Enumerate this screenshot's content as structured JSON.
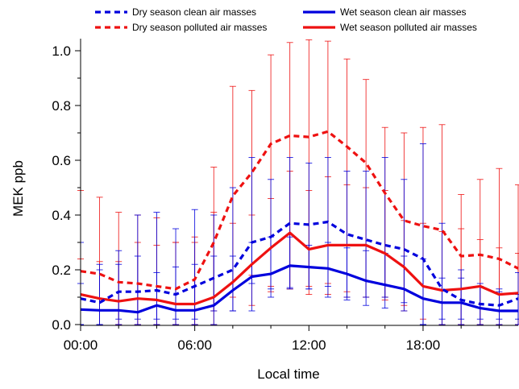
{
  "chart_data": {
    "type": "line",
    "xlabel": "Local time",
    "ylabel": "MEK ppb",
    "xlim": [
      0,
      23
    ],
    "ylim": [
      0,
      1.05
    ],
    "grid": false,
    "legend_position": "top",
    "x_ticks": [
      {
        "value": 0,
        "label": "00:00"
      },
      {
        "value": 6,
        "label": "06:00"
      },
      {
        "value": 12,
        "label": "12:00"
      },
      {
        "value": 18,
        "label": "18:00"
      }
    ],
    "y_ticks": [
      {
        "value": 0.0,
        "label": "0.0"
      },
      {
        "value": 0.2,
        "label": "0.2"
      },
      {
        "value": 0.4,
        "label": "0.4"
      },
      {
        "value": 0.6,
        "label": "0.6"
      },
      {
        "value": 0.8,
        "label": "0.8"
      },
      {
        "value": 1.0,
        "label": "1.0"
      }
    ],
    "x": [
      0,
      1,
      2,
      3,
      4,
      5,
      6,
      7,
      8,
      9,
      10,
      11,
      12,
      13,
      14,
      15,
      16,
      17,
      18,
      19,
      20,
      21,
      22,
      23
    ],
    "series": [
      {
        "name": "Dry season clean air masses",
        "color": "#0000dd",
        "dash": true,
        "values": [
          0.095,
          0.08,
          0.12,
          0.12,
          0.125,
          0.11,
          0.14,
          0.17,
          0.2,
          0.3,
          0.32,
          0.37,
          0.365,
          0.375,
          0.33,
          0.31,
          0.29,
          0.275,
          0.24,
          0.13,
          0.09,
          0.075,
          0.07,
          0.095
        ],
        "err_low": [
          0.0,
          0.0,
          0.02,
          0.02,
          0.02,
          0.02,
          0.02,
          0.05,
          0.05,
          0.15,
          0.1,
          0.13,
          0.13,
          0.14,
          0.1,
          0.1,
          0.1,
          0.08,
          0.0,
          0.02,
          0.02,
          0.02,
          0.02,
          0.02
        ],
        "err_high": [
          0.3,
          0.22,
          0.27,
          0.4,
          0.41,
          0.35,
          0.42,
          0.4,
          0.5,
          0.61,
          0.53,
          0.61,
          0.59,
          0.61,
          0.56,
          0.56,
          0.61,
          0.53,
          0.66,
          0.37,
          0.2,
          0.15,
          0.12,
          0.19
        ]
      },
      {
        "name": "Dry season polluted air masses",
        "color": "#ee1111",
        "dash": true,
        "values": [
          0.195,
          0.185,
          0.155,
          0.15,
          0.14,
          0.13,
          0.165,
          0.3,
          0.47,
          0.555,
          0.66,
          0.69,
          0.685,
          0.705,
          0.65,
          0.59,
          0.48,
          0.38,
          0.36,
          0.345,
          0.25,
          0.255,
          0.24,
          0.205
        ],
        "err_low": [
          0.0,
          0.0,
          0.0,
          0.0,
          0.0,
          0.0,
          0.0,
          0.05,
          0.1,
          0.18,
          0.14,
          0.13,
          0.14,
          0.15,
          0.12,
          0.1,
          0.1,
          0.05,
          0.0,
          0.0,
          0.0,
          0.0,
          0.0,
          0.0
        ],
        "err_high": [
          0.49,
          0.465,
          0.41,
          0.4,
          0.39,
          0.3,
          0.32,
          0.575,
          0.87,
          0.855,
          0.985,
          1.03,
          1.04,
          1.035,
          0.97,
          0.895,
          0.72,
          0.7,
          0.72,
          0.73,
          0.475,
          0.53,
          0.57,
          0.51
        ]
      },
      {
        "name": "Wet season clean air masses",
        "color": "#0000dd",
        "dash": false,
        "values": [
          0.055,
          0.052,
          0.052,
          0.045,
          0.07,
          0.052,
          0.052,
          0.07,
          0.125,
          0.175,
          0.185,
          0.215,
          0.21,
          0.205,
          0.185,
          0.16,
          0.145,
          0.13,
          0.095,
          0.08,
          0.08,
          0.06,
          0.05,
          0.05
        ],
        "err_low": [
          0.0,
          0.0,
          0.0,
          0.0,
          0.0,
          0.0,
          0.0,
          0.0,
          0.05,
          0.05,
          0.13,
          0.135,
          0.13,
          0.1,
          0.09,
          0.07,
          0.06,
          0.05,
          0.0,
          0.0,
          0.0,
          0.0,
          0.0,
          0.0
        ],
        "err_high": [
          0.15,
          0.2,
          0.22,
          0.25,
          0.19,
          0.21,
          0.22,
          0.25,
          0.25,
          0.3,
          0.32,
          0.32,
          0.29,
          0.3,
          0.28,
          0.27,
          0.26,
          0.25,
          0.24,
          0.17,
          0.17,
          0.14,
          0.13,
          0.11
        ]
      },
      {
        "name": "Wet season polluted air masses",
        "color": "#ee1111",
        "dash": false,
        "values": [
          0.11,
          0.095,
          0.085,
          0.095,
          0.09,
          0.075,
          0.075,
          0.1,
          0.155,
          0.22,
          0.28,
          0.335,
          0.275,
          0.29,
          0.29,
          0.29,
          0.26,
          0.21,
          0.14,
          0.125,
          0.13,
          0.14,
          0.11,
          0.115
        ],
        "err_low": [
          0.0,
          0.0,
          0.0,
          0.0,
          0.0,
          0.0,
          0.0,
          0.0,
          0.05,
          0.07,
          0.12,
          0.13,
          0.11,
          0.11,
          0.1,
          0.1,
          0.09,
          0.07,
          0.02,
          0.0,
          0.0,
          0.0,
          0.0,
          0.0
        ],
        "err_high": [
          0.24,
          0.23,
          0.23,
          0.3,
          0.29,
          0.3,
          0.3,
          0.41,
          0.37,
          0.4,
          0.46,
          0.56,
          0.49,
          0.54,
          0.51,
          0.5,
          0.49,
          0.38,
          0.37,
          0.34,
          0.35,
          0.31,
          0.28,
          0.26
        ]
      }
    ]
  }
}
